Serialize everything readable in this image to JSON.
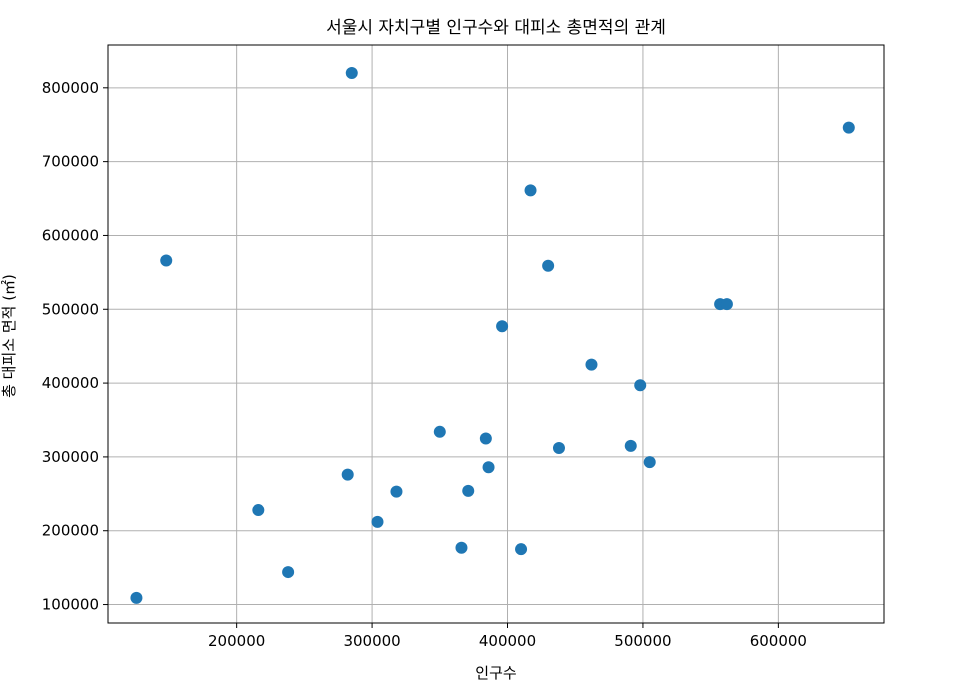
{
  "chart_data": {
    "type": "scatter",
    "title": "서울시 자치구별 인구수와 대피소 총면적의 관계",
    "xlabel": "인구수",
    "ylabel": "총 대피소 면적 (㎡)",
    "xlim": [
      105000,
      678000
    ],
    "ylim": [
      75000,
      858000
    ],
    "xticks": [
      200000,
      300000,
      400000,
      500000,
      600000
    ],
    "yticks": [
      100000,
      200000,
      300000,
      400000,
      500000,
      600000,
      700000,
      800000
    ],
    "xtick_labels": [
      "200000",
      "300000",
      "400000",
      "500000",
      "600000"
    ],
    "ytick_labels": [
      "100000",
      "200000",
      "300000",
      "400000",
      "500000",
      "600000",
      "700000",
      "800000"
    ],
    "grid": true,
    "point_color": "#1f77b4",
    "points": [
      {
        "x": 126000,
        "y": 109000
      },
      {
        "x": 148000,
        "y": 566000
      },
      {
        "x": 216000,
        "y": 228000
      },
      {
        "x": 238000,
        "y": 144000
      },
      {
        "x": 282000,
        "y": 276000
      },
      {
        "x": 285000,
        "y": 820000
      },
      {
        "x": 304000,
        "y": 212000
      },
      {
        "x": 318000,
        "y": 253000
      },
      {
        "x": 350000,
        "y": 334000
      },
      {
        "x": 366000,
        "y": 177000
      },
      {
        "x": 371000,
        "y": 254000
      },
      {
        "x": 384000,
        "y": 325000
      },
      {
        "x": 386000,
        "y": 286000
      },
      {
        "x": 396000,
        "y": 477000
      },
      {
        "x": 410000,
        "y": 175000
      },
      {
        "x": 417000,
        "y": 661000
      },
      {
        "x": 430000,
        "y": 559000
      },
      {
        "x": 438000,
        "y": 312000
      },
      {
        "x": 462000,
        "y": 425000
      },
      {
        "x": 491000,
        "y": 315000
      },
      {
        "x": 498000,
        "y": 397000
      },
      {
        "x": 505000,
        "y": 293000
      },
      {
        "x": 557000,
        "y": 507000
      },
      {
        "x": 562000,
        "y": 507000
      },
      {
        "x": 652000,
        "y": 746000
      }
    ]
  }
}
